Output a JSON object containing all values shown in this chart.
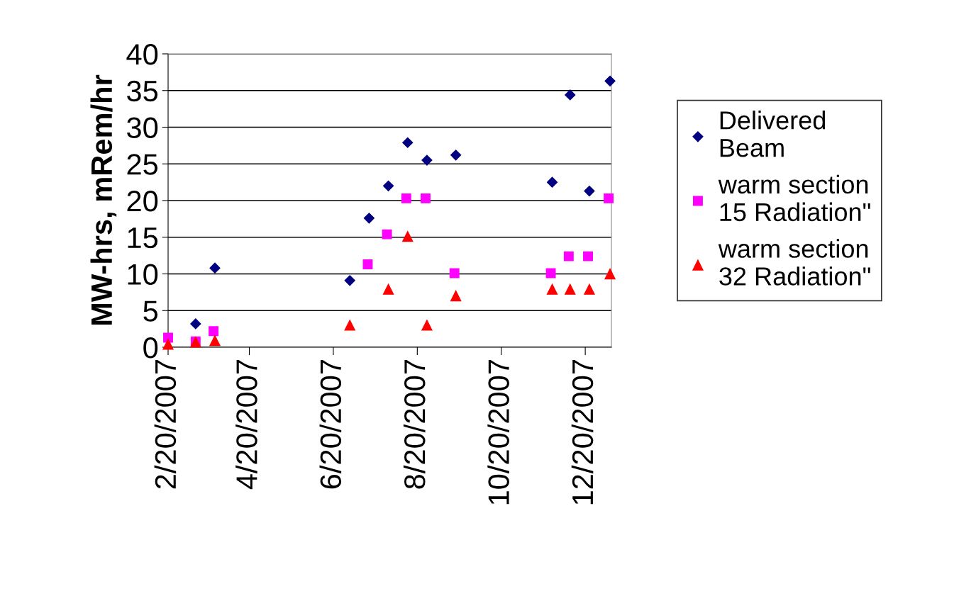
{
  "chart_data": {
    "type": "scatter",
    "ylabel": "MW-hrs, mRem/hr",
    "xlim": [
      "2007-02-20",
      "2008-01-08"
    ],
    "xticks": [
      {
        "value": "2007-02-20",
        "label": "2/20/2007"
      },
      {
        "value": "2007-04-20",
        "label": "4/20/2007"
      },
      {
        "value": "2007-06-20",
        "label": "6/20/2007"
      },
      {
        "value": "2007-08-20",
        "label": "8/20/2007"
      },
      {
        "value": "2007-10-20",
        "label": "10/20/2007"
      },
      {
        "value": "2007-12-20",
        "label": "12/20/2007"
      }
    ],
    "ylim": [
      0,
      40
    ],
    "yticks": [
      0,
      5,
      10,
      15,
      20,
      25,
      30,
      35,
      40
    ],
    "grid": "y",
    "legend": "right",
    "series": [
      {
        "name": "Delivered\nBeam",
        "color": "#000080",
        "marker": "diamond",
        "x": [
          "2007-03-12",
          "2007-03-26",
          "2007-07-02",
          "2007-07-16",
          "2007-07-30",
          "2007-08-13",
          "2007-08-27",
          "2007-09-17",
          "2007-11-26",
          "2007-12-09",
          "2007-12-23",
          "2008-01-07"
        ],
        "values": [
          3.2,
          10.8,
          9.1,
          17.6,
          22.0,
          27.9,
          25.5,
          26.2,
          22.5,
          34.4,
          21.3,
          36.3
        ]
      },
      {
        "name": "warm section\n15 Radiation\"",
        "color": "#ff00ff",
        "marker": "square",
        "x": [
          "2007-02-20",
          "2007-03-12",
          "2007-03-25",
          "2007-07-15",
          "2007-07-29",
          "2007-08-12",
          "2007-08-26",
          "2007-09-16",
          "2007-11-25",
          "2007-12-08",
          "2007-12-22",
          "2008-01-06"
        ],
        "values": [
          1.3,
          0.8,
          2.2,
          11.3,
          15.4,
          20.3,
          20.3,
          10.1,
          10.1,
          12.4,
          12.4,
          20.3
        ]
      },
      {
        "name": "warm section\n32 Radiation\"",
        "color": "#ff0000",
        "marker": "triangle",
        "x": [
          "2007-02-20",
          "2007-03-12",
          "2007-03-26",
          "2007-07-02",
          "2007-07-30",
          "2007-08-13",
          "2007-08-27",
          "2007-09-17",
          "2007-11-26",
          "2007-12-09",
          "2007-12-23",
          "2008-01-07"
        ],
        "values": [
          0.4,
          0.7,
          0.9,
          3.0,
          7.9,
          15.1,
          3.0,
          7.0,
          7.9,
          7.9,
          7.9,
          10.0
        ]
      }
    ]
  }
}
